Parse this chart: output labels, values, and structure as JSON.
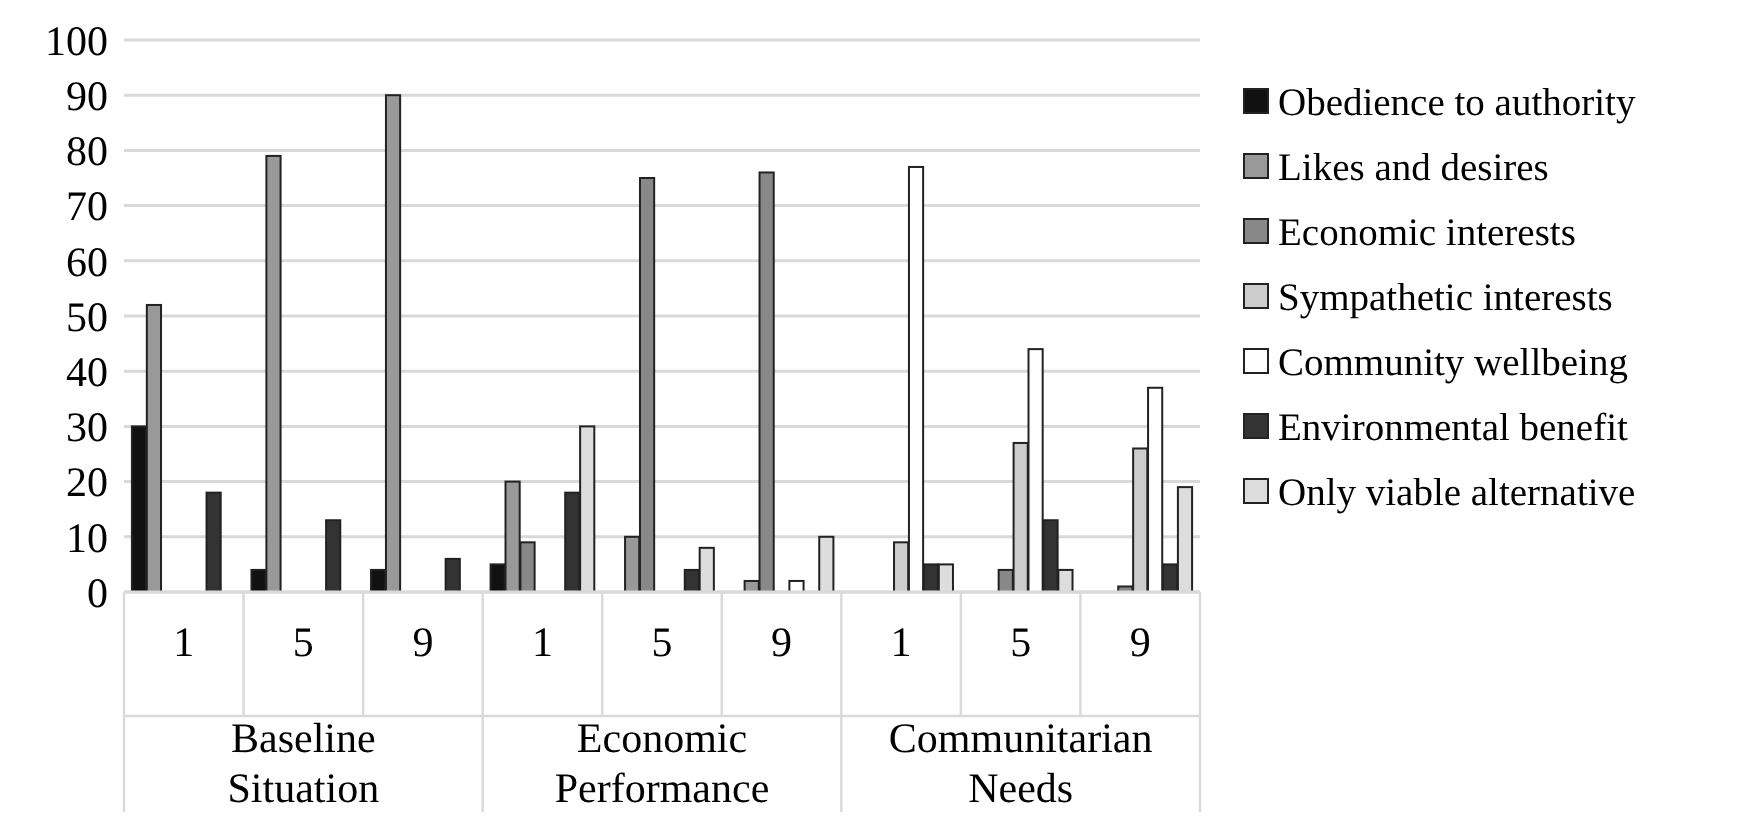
{
  "chart_data": {
    "type": "bar",
    "categories": [
      "1",
      "5",
      "9",
      "1",
      "5",
      "9",
      "1",
      "5",
      "9"
    ],
    "annotations": [
      "Baseline Situation",
      "Economic Performance",
      "Communitarian Needs"
    ],
    "series": [
      {
        "name": "Obedience to authority",
        "color": "#111111",
        "values": [
          30,
          4,
          4,
          5,
          0,
          0,
          0,
          0,
          0
        ]
      },
      {
        "name": "Likes and desires",
        "color": "#999999",
        "values": [
          52,
          79,
          90,
          20,
          10,
          2,
          0,
          0,
          0
        ]
      },
      {
        "name": "Economic interests",
        "color": "#888888",
        "values": [
          0,
          0,
          0,
          9,
          75,
          76,
          0,
          4,
          1
        ]
      },
      {
        "name": "Sympathetic interests",
        "color": "#cccccc",
        "values": [
          0,
          0,
          0,
          0,
          0,
          0,
          9,
          27,
          26
        ]
      },
      {
        "name": "Community wellbeing",
        "color": "#ffffff",
        "values": [
          0,
          0,
          0,
          0,
          0,
          2,
          77,
          44,
          37
        ]
      },
      {
        "name": "Environmental benefit",
        "color": "#333333",
        "values": [
          18,
          13,
          6,
          18,
          4,
          0,
          5,
          13,
          5
        ]
      },
      {
        "name": "Only viable alternative",
        "color": "#dddddd",
        "values": [
          0,
          0,
          0,
          30,
          8,
          10,
          5,
          4,
          19
        ]
      }
    ],
    "ylim": [
      0,
      100
    ],
    "yticks": [
      0,
      10,
      20,
      30,
      40,
      50,
      60,
      70,
      80,
      90,
      100
    ],
    "grid": "y",
    "legend": "right"
  }
}
